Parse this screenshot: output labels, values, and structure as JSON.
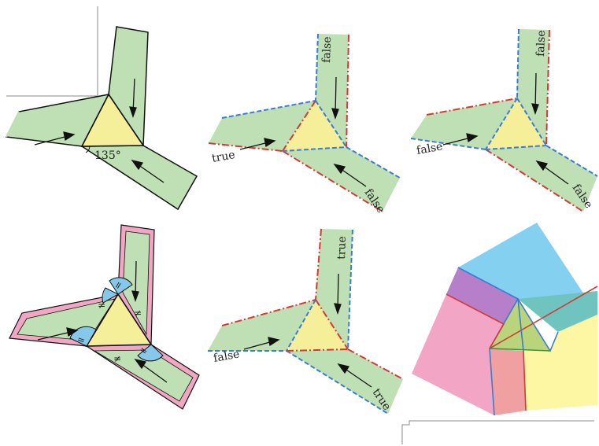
{
  "colors": {
    "gadget_fill": "#bfe0b4",
    "triangle_fill": "#f5ef9a",
    "true_edge": "#d23a36",
    "false_edge": "#3a7cd0",
    "stripe_pink": "#f1a6c4",
    "angle_blue": "#86c8ea",
    "face_blue": "#84d0f0",
    "face_purple": "#b77fc9",
    "face_pink": "#f2a5c5",
    "face_salmon": "#f0a0a0",
    "face_yellow": "#fdf7a4",
    "face_teal": "#6fc4c0",
    "crease_green": "#2a9a4a"
  },
  "panels": [
    {
      "id": "angle",
      "angle_label": "135°",
      "labels": []
    },
    {
      "id": "config-true-false-false",
      "labels": [
        "true",
        "false",
        "false"
      ]
    },
    {
      "id": "config-false-false-false",
      "labels": [
        "false",
        "false",
        "false"
      ]
    },
    {
      "id": "equal-angles",
      "labels": [],
      "marks": [
        "=",
        "=",
        "=",
        "≠",
        "≠",
        "≠"
      ]
    },
    {
      "id": "config-false-true-true",
      "labels": [
        "false",
        "true",
        "true"
      ]
    },
    {
      "id": "crease-pattern",
      "labels": []
    }
  ]
}
